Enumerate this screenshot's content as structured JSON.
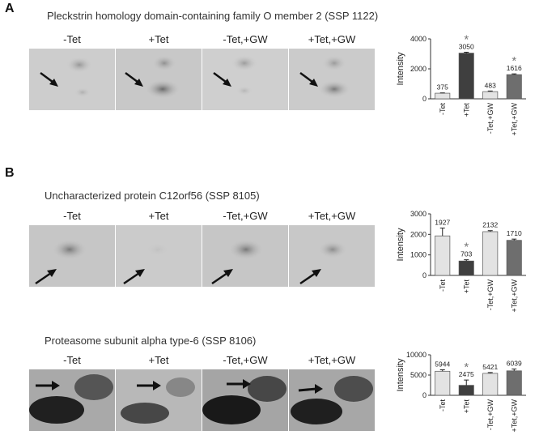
{
  "panels": [
    {
      "letter": "A",
      "title": "Pleckstrin homology domain-containing family O member 2 (SSP 1122)",
      "lanes": [
        "-Tet",
        "+Tet",
        "-Tet,+GW",
        "+Tet,+GW"
      ]
    },
    {
      "letter": "B",
      "title": "Uncharacterized protein C12orf56 (SSP 8105)",
      "lanes": [
        "-Tet",
        "+Tet",
        "-Tet,+GW",
        "+Tet,+GW"
      ]
    },
    {
      "letter": "",
      "title": "Proteasome subunit alpha type-6 (SSP 8106)",
      "lanes": [
        "-Tet",
        "+Tet",
        "-Tet,+GW",
        "+Tet,+GW"
      ]
    }
  ],
  "colors": {
    "bar_light": "#e3e3e3",
    "bar_darkest": "#3f3f3f",
    "bar_mid": "#6e6e6e",
    "asterisk": "#777777"
  },
  "chart_data": [
    {
      "type": "bar",
      "categories": [
        "-Tet",
        "+Tet",
        "-Tet,+GW",
        "+Tet,+GW"
      ],
      "values": [
        375,
        3050,
        483,
        1616
      ],
      "value_labels": [
        "375",
        "3050",
        "483",
        "1616"
      ],
      "errors": [
        20,
        60,
        40,
        50
      ],
      "significant": [
        false,
        true,
        false,
        true
      ],
      "significance_mark": "*",
      "ylabel": "Intensity",
      "ylim": [
        0,
        4000
      ],
      "yticks": [
        0,
        2000,
        4000
      ],
      "bar_colors": [
        "#e3e3e3",
        "#3f3f3f",
        "#e3e3e3",
        "#6e6e6e"
      ]
    },
    {
      "type": "bar",
      "categories": [
        "-Tet",
        "+Tet",
        "-Tet,+GW",
        "+Tet,+GW"
      ],
      "values": [
        1927,
        703,
        2132,
        1710
      ],
      "value_labels": [
        "1927",
        "703",
        "2132",
        "1710"
      ],
      "errors": [
        380,
        60,
        50,
        60
      ],
      "significant": [
        false,
        true,
        false,
        false
      ],
      "significance_mark": "*",
      "ylabel": "Intensity",
      "ylim": [
        0,
        3000
      ],
      "yticks": [
        0,
        1000,
        2000,
        3000
      ],
      "bar_colors": [
        "#e3e3e3",
        "#3f3f3f",
        "#e3e3e3",
        "#6e6e6e"
      ]
    },
    {
      "type": "bar",
      "categories": [
        "-Tet",
        "+Tet",
        "-Tet,+GW",
        "+Tet,+GW"
      ],
      "values": [
        5944,
        2475,
        5421,
        6039
      ],
      "value_labels": [
        "5944",
        "2475",
        "5421",
        "6039"
      ],
      "errors": [
        350,
        1300,
        200,
        450
      ],
      "significant": [
        false,
        true,
        false,
        false
      ],
      "significance_mark": "*",
      "ylabel": "Intensity",
      "ylim": [
        0,
        10000
      ],
      "yticks": [
        0,
        5000,
        10000
      ],
      "bar_colors": [
        "#e3e3e3",
        "#3f3f3f",
        "#e3e3e3",
        "#6e6e6e"
      ]
    }
  ]
}
